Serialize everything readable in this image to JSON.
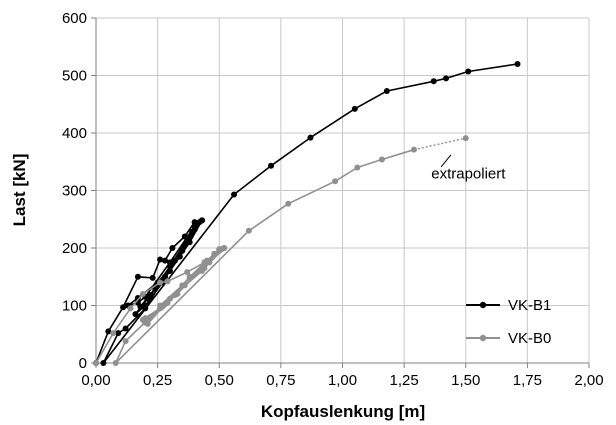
{
  "chart_data": {
    "type": "line",
    "title": "",
    "xlabel": "Kopfauslenkung [m]",
    "ylabel": "Last [kN]",
    "xlim": [
      0,
      2.0
    ],
    "ylim": [
      0,
      600
    ],
    "x_ticks": [
      0,
      0.25,
      0.5,
      0.75,
      1.0,
      1.25,
      1.5,
      1.75,
      2.0
    ],
    "x_tick_labels": [
      "0,00",
      "0,25",
      "0,50",
      "0,75",
      "1,00",
      "1,25",
      "1,50",
      "1,75",
      "2,00"
    ],
    "y_ticks": [
      0,
      100,
      200,
      300,
      400,
      500,
      600
    ],
    "y_tick_labels": [
      "0",
      "100",
      "200",
      "300",
      "400",
      "500",
      "600"
    ],
    "grid": true,
    "legend_position": "bottom-right",
    "series": [
      {
        "name": "VK-B1",
        "color": "#000000",
        "points": [
          [
            0.0,
            0
          ],
          [
            0.05,
            55
          ],
          [
            0.11,
            97
          ],
          [
            0.17,
            150
          ],
          [
            0.23,
            148
          ],
          [
            0.26,
            180
          ],
          [
            0.28,
            178
          ],
          [
            0.31,
            200
          ],
          [
            0.36,
            220
          ],
          [
            0.4,
            245
          ],
          [
            0.43,
            248
          ],
          [
            0.4,
            238
          ],
          [
            0.3,
            175
          ],
          [
            0.2,
            115
          ],
          [
            0.17,
            105
          ],
          [
            0.13,
            100
          ],
          [
            0.17,
            113
          ],
          [
            0.25,
            140
          ],
          [
            0.34,
            185
          ],
          [
            0.42,
            245
          ],
          [
            0.4,
            232
          ],
          [
            0.32,
            178
          ],
          [
            0.24,
            130
          ],
          [
            0.18,
            98
          ],
          [
            0.21,
            112
          ],
          [
            0.3,
            160
          ],
          [
            0.38,
            210
          ],
          [
            0.43,
            248
          ],
          [
            0.39,
            228
          ],
          [
            0.3,
            168
          ],
          [
            0.22,
            118
          ],
          [
            0.16,
            85
          ],
          [
            0.2,
            100
          ],
          [
            0.27,
            140
          ],
          [
            0.35,
            195
          ],
          [
            0.43,
            248
          ],
          [
            0.38,
            220
          ],
          [
            0.28,
            150
          ],
          [
            0.2,
            95
          ],
          [
            0.12,
            60
          ],
          [
            0.09,
            52
          ],
          [
            0.03,
            0
          ],
          [
            0.56,
            293
          ],
          [
            0.71,
            343
          ],
          [
            0.87,
            392
          ],
          [
            1.05,
            442
          ],
          [
            1.18,
            473
          ],
          [
            1.37,
            490
          ],
          [
            1.42,
            495
          ],
          [
            1.51,
            507
          ],
          [
            1.71,
            520
          ]
        ]
      },
      {
        "name": "VK-B0",
        "color": "#909090",
        "points": [
          [
            0.0,
            0
          ],
          [
            0.07,
            52
          ],
          [
            0.14,
            95
          ],
          [
            0.19,
            120
          ],
          [
            0.26,
            140
          ],
          [
            0.29,
            142
          ],
          [
            0.37,
            158
          ],
          [
            0.44,
            175
          ],
          [
            0.5,
            195
          ],
          [
            0.52,
            200
          ],
          [
            0.48,
            190
          ],
          [
            0.38,
            150
          ],
          [
            0.29,
            105
          ],
          [
            0.2,
            70
          ],
          [
            0.19,
            75
          ],
          [
            0.26,
            95
          ],
          [
            0.36,
            135
          ],
          [
            0.46,
            175
          ],
          [
            0.51,
            198
          ],
          [
            0.45,
            178
          ],
          [
            0.35,
            135
          ],
          [
            0.26,
            100
          ],
          [
            0.21,
            68
          ],
          [
            0.28,
            102
          ],
          [
            0.38,
            148
          ],
          [
            0.52,
            200
          ],
          [
            0.44,
            165
          ],
          [
            0.32,
            118
          ],
          [
            0.22,
            80
          ],
          [
            0.2,
            78
          ],
          [
            0.27,
            98
          ],
          [
            0.33,
            120
          ],
          [
            0.5,
            198
          ],
          [
            0.43,
            160
          ],
          [
            0.3,
            112
          ],
          [
            0.12,
            38
          ],
          [
            0.08,
            0
          ],
          [
            0.62,
            230
          ],
          [
            0.78,
            277
          ],
          [
            0.97,
            316
          ],
          [
            1.06,
            340
          ],
          [
            1.16,
            354
          ],
          [
            1.29,
            371
          ]
        ],
        "extrapolated": [
          [
            1.29,
            371
          ],
          [
            1.5,
            391
          ]
        ]
      }
    ],
    "annotations": [
      {
        "text": "extrapoliert",
        "x": 1.36,
        "y": 330
      }
    ]
  },
  "legend": {
    "items": [
      {
        "label": "VK-B1",
        "color": "#000000"
      },
      {
        "label": "VK-B0",
        "color": "#909090"
      }
    ]
  },
  "colors": {
    "grid": "#c8c8c8",
    "axis": "#808080"
  }
}
